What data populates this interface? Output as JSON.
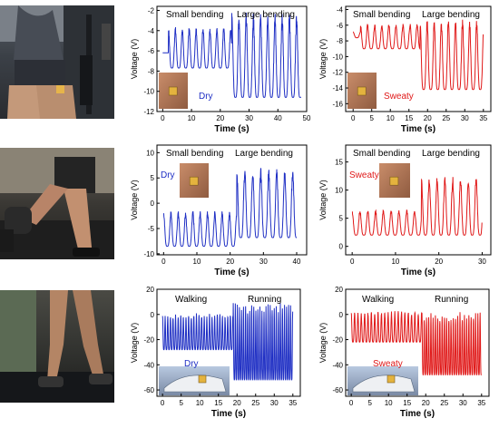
{
  "colors": {
    "dry": "#1f2fc4",
    "sweaty": "#e01818",
    "axis": "#000000"
  },
  "photos": [
    {
      "name": "gym-exercise-photo",
      "icon": "person-seated-exercise"
    },
    {
      "name": "treadmill-leg-photo",
      "icon": "person-treadmill-running"
    },
    {
      "name": "running-shoes-photo",
      "icon": "legs-treadmill-running"
    }
  ],
  "chart_data": [
    {
      "type": "line",
      "id": "r1-dry",
      "color": "#1f2fc4",
      "xlabel": "Time (s)",
      "ylabel": "Voltage (V)",
      "xlim": [
        -2,
        50
      ],
      "ylim": [
        -12,
        -1.6
      ],
      "xticks": [
        0,
        10,
        20,
        30,
        40,
        50
      ],
      "yticks": [
        -12,
        -10,
        -8,
        -6,
        -4,
        -2
      ],
      "annotations": [
        "Small bending",
        "Large bending"
      ],
      "inset_label": "Dry",
      "segments": [
        {
          "t0": 0,
          "t1": 2,
          "period": 2,
          "peak": -6.2,
          "trough": -6.2
        },
        {
          "t0": 2,
          "t1": 24,
          "period": 2.4,
          "peak": -3.6,
          "trough": -7.7
        },
        {
          "t0": 24,
          "t1": 48,
          "period": 2.5,
          "peak": -2.2,
          "trough": -10.6
        }
      ]
    },
    {
      "type": "line",
      "id": "r1-sweaty",
      "color": "#e01818",
      "xlabel": "Time (s)",
      "ylabel": "Voltage (V)",
      "xlim": [
        -2,
        37
      ],
      "ylim": [
        -17,
        -3.6
      ],
      "xticks": [
        0,
        5,
        10,
        15,
        20,
        25,
        30,
        35
      ],
      "yticks": [
        -16,
        -14,
        -12,
        -10,
        -8,
        -6,
        -4
      ],
      "annotations": [
        "Small bending",
        "Large bending"
      ],
      "inset_label": "Sweaty",
      "segments": [
        {
          "t0": 0,
          "t1": 2,
          "period": 2,
          "peak": -6.8,
          "trough": -7.6
        },
        {
          "t0": 2,
          "t1": 18,
          "period": 1.9,
          "peak": -5.8,
          "trough": -9.0
        },
        {
          "t0": 18,
          "t1": 35,
          "period": 1.9,
          "peak": -5.0,
          "trough": -14.2
        }
      ]
    },
    {
      "type": "line",
      "id": "r2-dry",
      "color": "#1f2fc4",
      "xlabel": "Time (s)",
      "ylabel": "Voltage (V)",
      "xlim": [
        -2,
        43
      ],
      "ylim": [
        -10.2,
        11.5
      ],
      "xticks": [
        0,
        10,
        20,
        30,
        40
      ],
      "yticks": [
        -10,
        -5,
        0,
        5,
        10
      ],
      "annotations": [
        "Small bending",
        "Large bending"
      ],
      "inset_label": "Dry",
      "segments": [
        {
          "t0": 0,
          "t1": 22,
          "period": 2.2,
          "peak": -1.5,
          "trough": -8.5
        },
        {
          "t0": 22,
          "t1": 40,
          "period": 2.4,
          "peak": 7.0,
          "trough": -6.8
        }
      ]
    },
    {
      "type": "line",
      "id": "r2-sweaty",
      "color": "#e01818",
      "xlabel": "Time (s)",
      "ylabel": "Voltage (V)",
      "xlim": [
        -1.5,
        32
      ],
      "ylim": [
        -1.5,
        18
      ],
      "xticks": [
        0,
        10,
        20,
        30
      ],
      "yticks": [
        0,
        5,
        10,
        15
      ],
      "annotations": [
        "Small bending",
        "Large bending"
      ],
      "inset_label": "Sweaty",
      "segments": [
        {
          "t0": 0,
          "t1": 16,
          "period": 1.8,
          "peak": 6.5,
          "trough": 2.0
        },
        {
          "t0": 16,
          "t1": 30,
          "period": 1.8,
          "peak": 12.5,
          "trough": 2.0
        }
      ]
    },
    {
      "type": "line",
      "id": "r3-dry",
      "color": "#1f2fc4",
      "xlabel": "Time (s)",
      "ylabel": "Voltage (V)",
      "xlim": [
        -1.5,
        37
      ],
      "ylim": [
        -65,
        20
      ],
      "xticks": [
        0,
        5,
        10,
        15,
        20,
        25,
        30,
        35
      ],
      "yticks": [
        -60,
        -40,
        -20,
        0,
        20
      ],
      "annotations": [
        "Walking",
        "Running"
      ],
      "inset_label": "Dry",
      "segments": [
        {
          "t0": 0,
          "t1": 19,
          "period": 0.7,
          "peak": 1.0,
          "trough": -28.0
        },
        {
          "t0": 19,
          "t1": 35,
          "period": 0.55,
          "peak": 10.0,
          "trough": -52.0
        }
      ]
    },
    {
      "type": "line",
      "id": "r3-sweaty",
      "color": "#e01818",
      "xlabel": "Time (s)",
      "ylabel": "Voltage (V)",
      "xlim": [
        -1.5,
        37
      ],
      "ylim": [
        -65,
        20
      ],
      "xticks": [
        0,
        5,
        10,
        15,
        20,
        25,
        30,
        35
      ],
      "yticks": [
        -60,
        -40,
        -20,
        0,
        20
      ],
      "annotations": [
        "Walking",
        "Running"
      ],
      "inset_label": "Sweaty",
      "segments": [
        {
          "t0": 0,
          "t1": 19,
          "period": 0.9,
          "peak": 3.0,
          "trough": -22.0
        },
        {
          "t0": 19,
          "t1": 35,
          "period": 0.6,
          "peak": 2.0,
          "trough": -48.0
        }
      ]
    }
  ]
}
